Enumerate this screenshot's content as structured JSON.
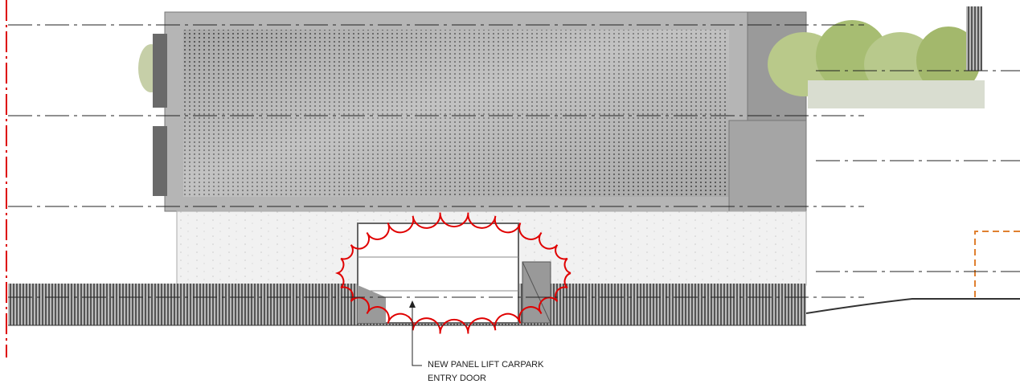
{
  "annotation": {
    "lines": [
      "NEW PANEL LIFT CARPARK",
      "ENTRY DOOR"
    ]
  }
}
